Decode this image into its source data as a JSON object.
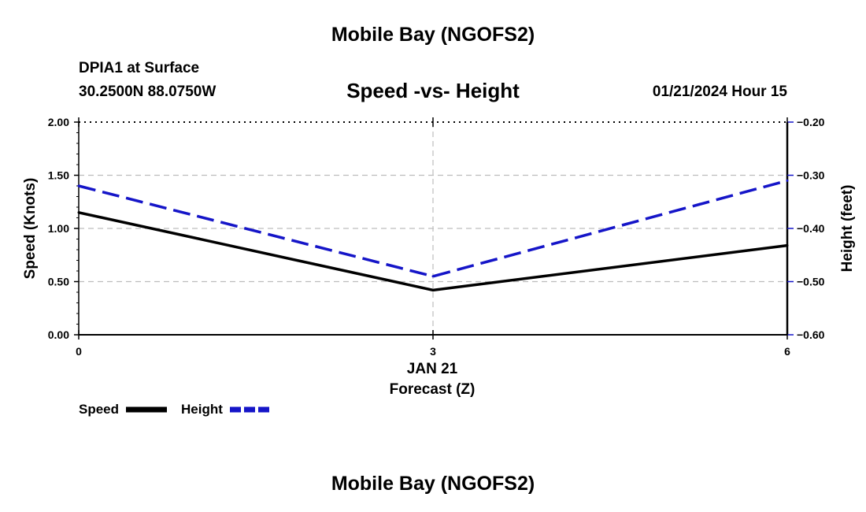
{
  "header": {
    "title": "Mobile Bay (NGOFS2)",
    "station": "DPIA1 at Surface",
    "coords": "30.2500N  88.0750W",
    "subtitle": "Speed -vs- Height",
    "datetime": "01/21/2024 Hour 15"
  },
  "footer": {
    "title": "Mobile Bay (NGOFS2)"
  },
  "chart_data": {
    "type": "line",
    "title": "Speed -vs- Height",
    "x": [
      0,
      3,
      6
    ],
    "xlim": [
      0,
      6
    ],
    "xticks": [
      "0",
      "3",
      "6"
    ],
    "x_date_label": "JAN 21",
    "xlabel": "Forecast (Z)",
    "ylabel_left": "Speed (Knots)",
    "ylim_left": [
      0,
      2
    ],
    "yticks_left": [
      "0.00",
      "0.50",
      "1.00",
      "1.50",
      "2.00"
    ],
    "ylabel_right": "Height (feet)",
    "ylim_right": [
      -0.6,
      -0.2
    ],
    "yticks_right": [
      "−0.60",
      "−0.50",
      "−0.40",
      "−0.30",
      "−0.20"
    ],
    "grid": true,
    "legend_position": "bottom-left",
    "series": [
      {
        "name": "Speed",
        "axis": "left",
        "values": [
          1.15,
          0.42,
          0.84
        ],
        "color": "#000000",
        "style": "solid"
      },
      {
        "name": "Height",
        "axis": "right",
        "values": [
          -0.32,
          -0.49,
          -0.31
        ],
        "color": "#1515c8",
        "style": "dashed"
      }
    ]
  }
}
